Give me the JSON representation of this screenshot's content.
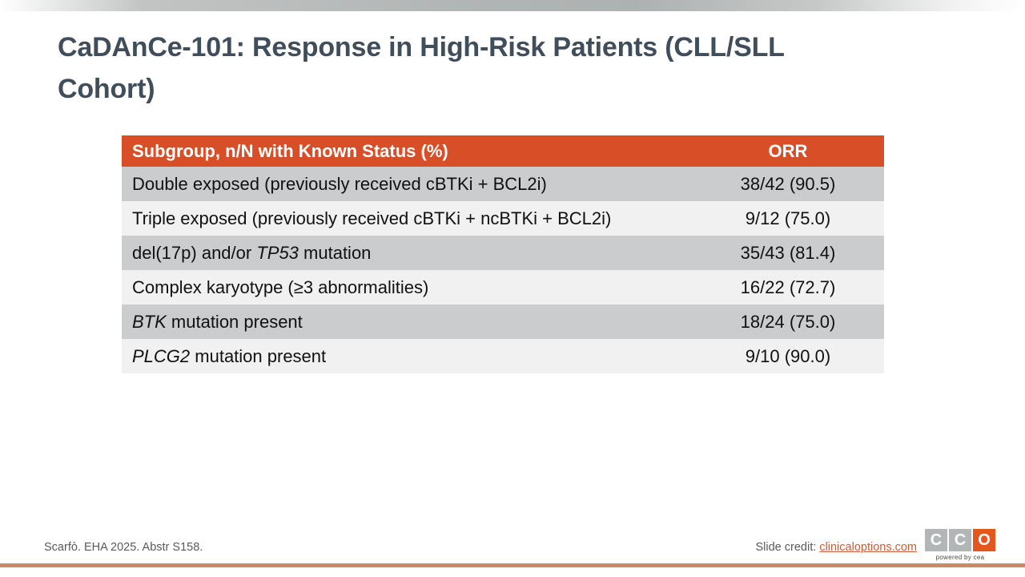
{
  "slide": {
    "title": "CaDAnCe-101: Response in High-Risk Patients (CLL/SLL Cohort)",
    "footer": {
      "reference": "Scarfò. EHA 2025. Abstr S158.",
      "credit_label": "Slide credit: ",
      "credit_link": "clinicaloptions.com",
      "logo": {
        "letters": [
          "C",
          "C",
          "O"
        ],
        "tagline": "powered by cea"
      }
    },
    "colors": {
      "table_header_bg": "#d84e26",
      "row_dark": "#cacccd",
      "row_light": "#f1f1f2",
      "title_text": "#3f4e5a",
      "link_orange": "#cd5c34",
      "bottom_rule": "#c98a6a",
      "logo_gray": "#b3b6b7",
      "logo_orange": "#e3561d"
    }
  },
  "table": {
    "columns": [
      "Subgroup, n/N with Known Status (%)",
      "ORR"
    ],
    "rows": [
      {
        "label_segments": [
          {
            "text": "Double exposed (previously received cBTKi + BCL2i)"
          }
        ],
        "orr": "38/42 (90.5)"
      },
      {
        "label_segments": [
          {
            "text": "Triple exposed (previously received cBTKi + ncBTKi + BCL2i)"
          }
        ],
        "orr": "9/12 (75.0)"
      },
      {
        "label_segments": [
          {
            "text": "del(17p) and/or "
          },
          {
            "text": "TP53",
            "italic": true
          },
          {
            "text": " mutation"
          }
        ],
        "orr": "35/43 (81.4)"
      },
      {
        "label_segments": [
          {
            "text": "Complex karyotype (≥3 abnormalities)"
          }
        ],
        "orr": "16/22 (72.7)"
      },
      {
        "label_segments": [
          {
            "text": "BTK",
            "italic": true
          },
          {
            "text": " mutation present"
          }
        ],
        "orr": "18/24 (75.0)"
      },
      {
        "label_segments": [
          {
            "text": "PLCG2",
            "italic": true
          },
          {
            "text": " mutation present"
          }
        ],
        "orr": "9/10 (90.0)"
      }
    ]
  }
}
